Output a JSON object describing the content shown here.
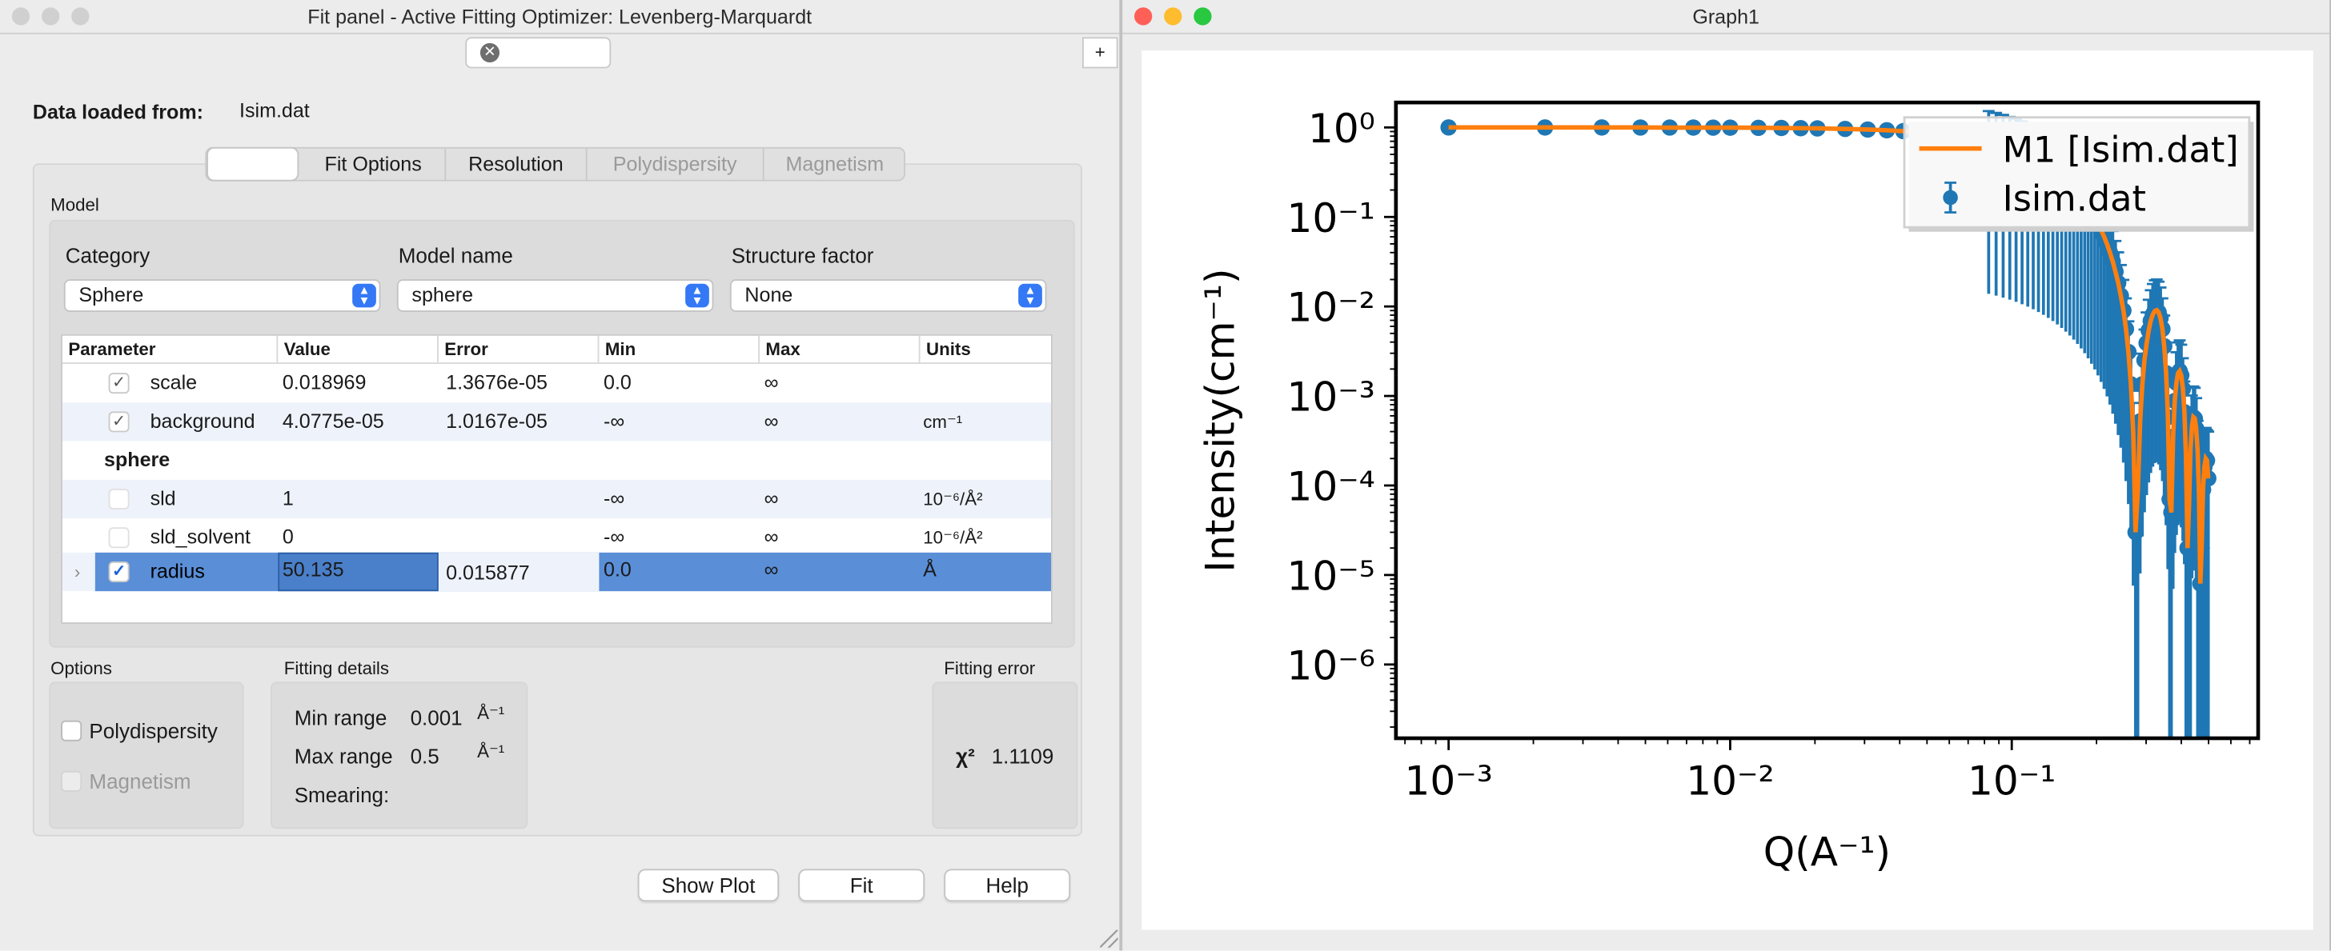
{
  "fit_panel": {
    "title": "Fit panel - Active Fitting Optimizer: Levenberg-Marquardt",
    "add_tab_label": "+",
    "data_loaded_label": "Data loaded from:",
    "data_file": "Isim.dat",
    "tabs": [
      "",
      "Fit Options",
      "Resolution",
      "Polydispersity",
      "Magnetism"
    ],
    "model_group_label": "Model",
    "category_label": "Category",
    "category_value": "Sphere",
    "model_name_label": "Model name",
    "model_name_value": "sphere",
    "structure_factor_label": "Structure factor",
    "structure_factor_value": "None",
    "table": {
      "headers": [
        "Parameter",
        "Value",
        "Error",
        "Min",
        "Max",
        "Units"
      ],
      "rows": [
        {
          "name": "scale",
          "value": "0.018969",
          "error": "1.3676e-05",
          "min": "0.0",
          "max": "∞",
          "units": "",
          "checked": true
        },
        {
          "name": "background",
          "value": "4.0775e-05",
          "error": "1.0167e-05",
          "min": "-∞",
          "max": "∞",
          "units": "cm⁻¹",
          "checked": true
        },
        {
          "section": "sphere"
        },
        {
          "name": "sld",
          "value": "1",
          "error": "",
          "min": "-∞",
          "max": "∞",
          "units": "10⁻⁶/Å²",
          "checked": false
        },
        {
          "name": "sld_solvent",
          "value": "0",
          "error": "",
          "min": "-∞",
          "max": "∞",
          "units": "10⁻⁶/Å²",
          "checked": false
        },
        {
          "name": "radius",
          "value": "50.135",
          "error": "0.015877",
          "min": "0.0",
          "max": "∞",
          "units": "Å",
          "checked": true,
          "selected": true
        }
      ]
    },
    "options_label": "Options",
    "polydispersity_label": "Polydispersity",
    "magnetism_label": "Magnetism",
    "fitting_details_label": "Fitting details",
    "min_range_label": "Min range",
    "min_range_value": "0.001",
    "min_range_unit": "Å⁻¹",
    "max_range_label": "Max range",
    "max_range_value": "0.5",
    "max_range_unit": "Å⁻¹",
    "smearing_label": "Smearing:",
    "fitting_error_label": "Fitting error",
    "chi2_label": "χ²",
    "chi2_value": "1.1109",
    "buttons": {
      "show_plot": "Show Plot",
      "fit": "Fit",
      "help": "Help"
    }
  },
  "graph": {
    "title": "Graph1",
    "legend": [
      {
        "label": "M1 [Isim.dat]",
        "color": "#ff7f0e"
      },
      {
        "label": "Isim.dat",
        "color": "#1f77b4"
      }
    ]
  },
  "chart_data": {
    "type": "line",
    "title": "",
    "xlabel": "Q(A⁻¹)",
    "ylabel": "Intensity(cm⁻¹)",
    "xscale": "log",
    "yscale": "log",
    "xlim": [
      0.00065,
      0.75
    ],
    "ylim": [
      1.5e-07,
      1.9
    ],
    "xticks": [
      {
        "v": 0.001,
        "label": "10⁻³"
      },
      {
        "v": 0.01,
        "label": "10⁻²"
      },
      {
        "v": 0.1,
        "label": "10⁻¹"
      }
    ],
    "yticks": [
      {
        "v": 1,
        "label": "10⁰"
      },
      {
        "v": 0.1,
        "label": "10⁻¹"
      },
      {
        "v": 0.01,
        "label": "10⁻²"
      },
      {
        "v": 0.001,
        "label": "10⁻³"
      },
      {
        "v": 0.0001,
        "label": "10⁻⁴"
      },
      {
        "v": 1e-05,
        "label": "10⁻⁵"
      },
      {
        "v": 1e-06,
        "label": "10⁻⁶"
      }
    ],
    "legend_position": "top-right",
    "series": [
      {
        "name": "Isim.dat",
        "kind": "errorbar",
        "color": "#1f77b4",
        "x": [
          0.001,
          0.0022,
          0.0035,
          0.0048,
          0.0061,
          0.0074,
          0.0087,
          0.01,
          0.0126,
          0.0152,
          0.0178,
          0.0204,
          0.0256,
          0.0308,
          0.036,
          0.0412,
          0.0464,
          0.0516,
          0.0568,
          0.062,
          0.0672,
          0.0724,
          0.0776,
          0.0828,
          0.088,
          0.0932,
          0.0984,
          0.1036,
          0.1088,
          0.114,
          0.1192,
          0.1244,
          0.1296,
          0.1348,
          0.14,
          0.1452,
          0.1504,
          0.1556,
          0.1608,
          0.166,
          0.1712,
          0.1764,
          0.1816,
          0.1868,
          0.192,
          0.1972,
          0.2024,
          0.2076,
          0.2128,
          0.218,
          0.2232,
          0.2284,
          0.2336,
          0.2388,
          0.244,
          0.2492,
          0.2544,
          0.2596,
          0.2648,
          0.27,
          0.2752,
          0.2804,
          0.2856,
          0.2908,
          0.296,
          0.3012,
          0.3064,
          0.3116,
          0.3168,
          0.322,
          0.3272,
          0.3324,
          0.3376,
          0.3428,
          0.348,
          0.3532,
          0.3584,
          0.3636,
          0.3688,
          0.374,
          0.3792,
          0.3844,
          0.3896,
          0.3948,
          0.4,
          0.4052,
          0.4104,
          0.4156,
          0.4208,
          0.426,
          0.4312,
          0.4364,
          0.4416,
          0.4468,
          0.452,
          0.4572,
          0.4624,
          0.4676,
          0.4728,
          0.478,
          0.4832,
          0.4884,
          0.4936,
          0.4988
        ],
        "y": [
          1.0,
          0.9997,
          0.9993,
          0.9986,
          0.9978,
          0.9968,
          0.9956,
          0.9942,
          0.9907,
          0.9865,
          0.9817,
          0.9761,
          0.9632,
          0.9478,
          0.9302,
          0.9104,
          0.8885,
          0.8648,
          0.8393,
          0.8123,
          0.7839,
          0.7544,
          0.7238,
          0.6924,
          0.6604,
          0.628,
          0.5953,
          0.5625,
          0.5298,
          0.4973,
          0.4653,
          0.4337,
          0.4028,
          0.3726,
          0.3434,
          0.3151,
          0.2878,
          0.2617,
          0.2368,
          0.2131,
          0.1907,
          0.1697,
          0.15,
          0.1317,
          0.1147,
          0.0991,
          0.0848,
          0.0718,
          0.06,
          0.0494,
          0.04,
          0.0317,
          0.0245,
          0.0183,
          0.0132,
          0.009,
          0.0056,
          0.0031,
          0.00135,
          0.00038,
          3e-05,
          9e-05,
          0.00052,
          0.00135,
          0.00251,
          0.0039,
          0.0054,
          0.0069,
          0.0081,
          0.0089,
          0.0091,
          0.0086,
          0.0074,
          0.0056,
          0.0036,
          0.0018,
          0.00058,
          7e-05,
          5e-05,
          0.00035,
          0.00088,
          0.0014,
          0.0018,
          0.0019,
          0.0017,
          0.0012,
          0.00066,
          0.00022,
          2e-05,
          6e-05,
          0.00026,
          0.00046,
          0.00058,
          0.00056,
          0.00043,
          0.00024,
          8e-05,
          8e-06,
          2e-05,
          9e-05,
          0.00016,
          0.0002,
          0.00019,
          0.00012
        ]
      },
      {
        "name": "M1 [Isim.dat]",
        "kind": "line",
        "color": "#ff7f0e",
        "x": [
          0.001,
          0.0022,
          0.0035,
          0.0048,
          0.0061,
          0.0074,
          0.0087,
          0.01,
          0.0126,
          0.0152,
          0.0178,
          0.0204,
          0.0256,
          0.0308,
          0.036,
          0.0412,
          0.0464,
          0.0516,
          0.0568,
          0.062,
          0.0672,
          0.0724,
          0.0776,
          0.0828,
          0.088,
          0.0932,
          0.0984,
          0.1036,
          0.1088,
          0.114,
          0.1192,
          0.1244,
          0.1296,
          0.1348,
          0.14,
          0.1452,
          0.1504,
          0.1556,
          0.1608,
          0.166,
          0.1712,
          0.1764,
          0.1816,
          0.1868,
          0.192,
          0.1972,
          0.2024,
          0.2076,
          0.2128,
          0.218,
          0.2232,
          0.2284,
          0.2336,
          0.2388,
          0.244,
          0.2492,
          0.2544,
          0.2596,
          0.2648,
          0.27,
          0.2752,
          0.2804,
          0.2856,
          0.2908,
          0.296,
          0.3012,
          0.3064,
          0.3116,
          0.3168,
          0.322,
          0.3272,
          0.3324,
          0.3376,
          0.3428,
          0.348,
          0.3532,
          0.3584,
          0.3636,
          0.3688,
          0.374,
          0.3792,
          0.3844,
          0.3896,
          0.3948,
          0.4,
          0.4052,
          0.4104,
          0.4156,
          0.4208,
          0.426,
          0.4312,
          0.4364,
          0.4416,
          0.4468,
          0.452,
          0.4572,
          0.4624,
          0.4676,
          0.4728,
          0.478,
          0.4832,
          0.4884,
          0.4936,
          0.4988
        ],
        "y": [
          1.0,
          0.9997,
          0.9993,
          0.9986,
          0.9978,
          0.9968,
          0.9956,
          0.9942,
          0.9907,
          0.9865,
          0.9817,
          0.9761,
          0.9632,
          0.9478,
          0.9302,
          0.9104,
          0.8885,
          0.8648,
          0.8393,
          0.8123,
          0.7839,
          0.7544,
          0.7238,
          0.6924,
          0.6604,
          0.628,
          0.5953,
          0.5625,
          0.5298,
          0.4973,
          0.4653,
          0.4337,
          0.4028,
          0.3726,
          0.3434,
          0.3151,
          0.2878,
          0.2617,
          0.2368,
          0.2131,
          0.1907,
          0.1697,
          0.15,
          0.1317,
          0.1147,
          0.0991,
          0.0848,
          0.0718,
          0.06,
          0.0494,
          0.04,
          0.0317,
          0.0245,
          0.0183,
          0.0132,
          0.009,
          0.0056,
          0.0031,
          0.00135,
          0.00038,
          3e-05,
          9e-05,
          0.00052,
          0.00135,
          0.00251,
          0.0039,
          0.0054,
          0.0069,
          0.0081,
          0.0089,
          0.0091,
          0.0086,
          0.0074,
          0.0056,
          0.0036,
          0.0018,
          0.00058,
          7e-05,
          5e-05,
          0.00035,
          0.00088,
          0.0014,
          0.0018,
          0.0019,
          0.0017,
          0.0012,
          0.00066,
          0.00022,
          2e-05,
          6e-05,
          0.00026,
          0.00046,
          0.00058,
          0.00056,
          0.00043,
          0.00024,
          8e-05,
          8e-06,
          2e-05,
          9e-05,
          0.00016,
          0.0002,
          0.00019,
          0.00012
        ]
      }
    ]
  }
}
